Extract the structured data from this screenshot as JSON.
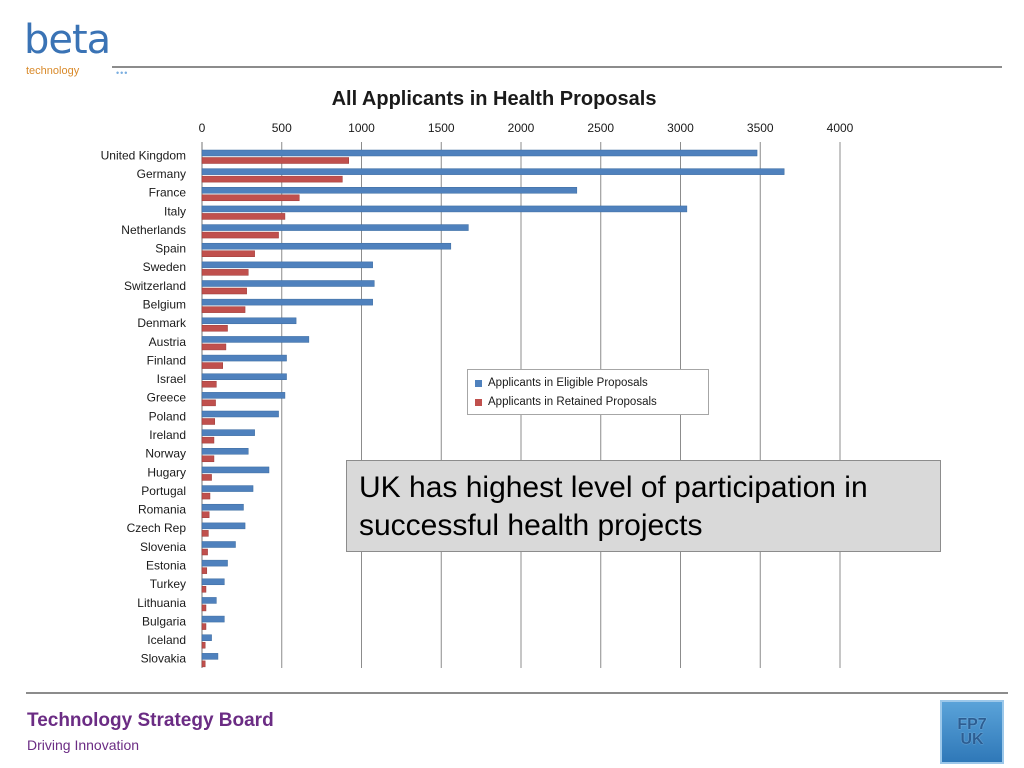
{
  "logo": {
    "word": "beta",
    "sub": "technology",
    "dots": "•••"
  },
  "footer": {
    "title": "Technology Strategy Board",
    "subtitle": "Driving Innovation"
  },
  "badge": {
    "line1": "FP7",
    "line2": "UK"
  },
  "callout_text": "UK has highest level of participation in successful health projects",
  "colors": {
    "eligible": "#4f81bd",
    "retained": "#c0504d",
    "footer": "#6b2c84"
  },
  "chart_data": {
    "type": "bar",
    "orientation": "horizontal",
    "title": "All Applicants in Health Proposals",
    "xlim": [
      0,
      4000
    ],
    "xticks": [
      0,
      500,
      1000,
      1500,
      2000,
      2500,
      3000,
      3500,
      4000
    ],
    "x_axis_position": "top",
    "grid": true,
    "legend_position": "right-center",
    "categories": [
      "United Kingdom",
      "Germany",
      "France",
      "Italy",
      "Netherlands",
      "Spain",
      "Sweden",
      "Switzerland",
      "Belgium",
      "Denmark",
      "Austria",
      "Finland",
      "Israel",
      "Greece",
      "Poland",
      "Ireland",
      "Norway",
      "Hugary",
      "Portugal",
      "Romania",
      "Czech Rep",
      "Slovenia",
      "Estonia",
      "Turkey",
      "Lithuania",
      "Bulgaria",
      "Iceland",
      "Slovakia"
    ],
    "series": [
      {
        "name": "Applicants in Eligible Proposals",
        "color": "#4f81bd",
        "values": [
          3480,
          3650,
          2350,
          3040,
          1670,
          1560,
          1070,
          1080,
          1070,
          590,
          670,
          530,
          530,
          520,
          480,
          330,
          290,
          420,
          320,
          260,
          270,
          210,
          160,
          140,
          90,
          140,
          60,
          100
        ]
      },
      {
        "name": "Applicants in Retained Proposals",
        "color": "#c0504d",
        "values": [
          920,
          880,
          610,
          520,
          480,
          330,
          290,
          280,
          270,
          160,
          150,
          130,
          90,
          85,
          80,
          75,
          75,
          60,
          50,
          45,
          40,
          35,
          30,
          25,
          25,
          25,
          20,
          20
        ]
      }
    ]
  }
}
